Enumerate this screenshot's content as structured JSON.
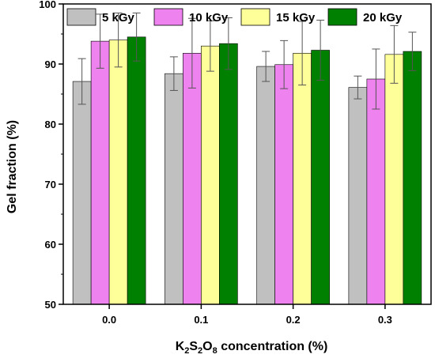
{
  "chart_data": {
    "type": "bar",
    "categories": [
      "0.0",
      "0.1",
      "0.2",
      "0.3"
    ],
    "series": [
      {
        "name": "5 kGy",
        "color": "#c0c0c0",
        "values": [
          87.1,
          88.4,
          89.6,
          86.1
        ],
        "errors": [
          3.8,
          2.8,
          2.5,
          1.9
        ]
      },
      {
        "name": "10 kGy",
        "color": "#ee82ee",
        "values": [
          93.8,
          91.8,
          89.9,
          87.5
        ],
        "errors": [
          4.5,
          5.8,
          4.0,
          5.0
        ]
      },
      {
        "name": "15 kGy",
        "color": "#ffff99",
        "values": [
          94.0,
          93.0,
          91.8,
          91.6
        ],
        "errors": [
          4.5,
          4.2,
          5.3,
          4.8
        ]
      },
      {
        "name": "20 kGy",
        "color": "#008000",
        "values": [
          94.5,
          93.4,
          92.3,
          92.1
        ],
        "errors": [
          4.0,
          4.3,
          5.0,
          3.2
        ]
      }
    ],
    "xlabel_main": "K",
    "xlabel_sub1": "2",
    "xlabel_mid": "S",
    "xlabel_sub2": "2",
    "xlabel_mid2": "O",
    "xlabel_sub3": "8",
    "xlabel_tail": " concentration (%)",
    "ylabel": "Gel fraction (%)",
    "ylim": [
      50,
      100
    ],
    "yticks": [
      50,
      60,
      70,
      80,
      90,
      100
    ],
    "grid": false,
    "legend_position": "top"
  }
}
